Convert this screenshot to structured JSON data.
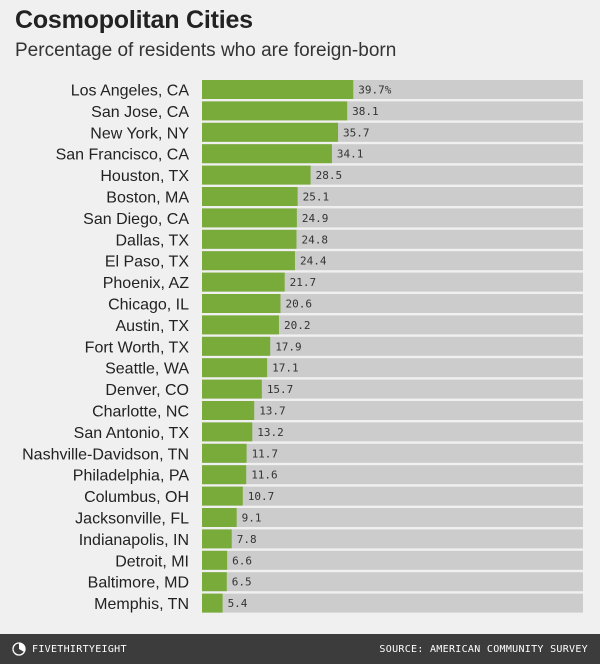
{
  "header": {
    "title": "Cosmopolitan Cities",
    "subtitle": "Percentage of residents who are foreign-born"
  },
  "footer": {
    "brand": "FIVETHIRTYEIGHT",
    "source": "SOURCE: AMERICAN COMMUNITY SURVEY"
  },
  "colors": {
    "bar": "#79ab3a",
    "track": "#cccccc",
    "background": "#f0f0f0",
    "footer": "#3c3c3c"
  },
  "chart_data": {
    "type": "bar",
    "orientation": "horizontal",
    "title": "Cosmopolitan Cities",
    "subtitle": "Percentage of residents who are foreign-born",
    "categories": [
      "Los Angeles, CA",
      "San Jose, CA",
      "New York, NY",
      "San Francisco, CA",
      "Houston, TX",
      "Boston, MA",
      "San Diego, CA",
      "Dallas, TX",
      "El Paso, TX",
      "Phoenix, AZ",
      "Chicago, IL",
      "Austin, TX",
      "Fort Worth, TX",
      "Seattle, WA",
      "Denver, CO",
      "Charlotte, NC",
      "San Antonio, TX",
      "Nashville-Davidson, TN",
      "Philadelphia, PA",
      "Columbus, OH",
      "Jacksonville, FL",
      "Indianapolis, IN",
      "Detroit, MI",
      "Baltimore, MD",
      "Memphis, TN"
    ],
    "values": [
      39.7,
      38.1,
      35.7,
      34.1,
      28.5,
      25.1,
      24.9,
      24.8,
      24.4,
      21.7,
      20.6,
      20.2,
      17.9,
      17.1,
      15.7,
      13.7,
      13.2,
      11.7,
      11.6,
      10.7,
      9.1,
      7.8,
      6.6,
      6.5,
      5.4
    ],
    "value_labels": [
      "39.7%",
      "38.1",
      "35.7",
      "34.1",
      "28.5",
      "25.1",
      "24.9",
      "24.8",
      "24.4",
      "21.7",
      "20.6",
      "20.2",
      "17.9",
      "17.1",
      "15.7",
      "13.7",
      "13.2",
      "11.7",
      "11.6",
      "10.7",
      "9.1",
      "7.8",
      "6.6",
      "6.5",
      "5.4"
    ],
    "xlim": [
      0,
      100
    ],
    "grid": false,
    "legend": "none"
  }
}
